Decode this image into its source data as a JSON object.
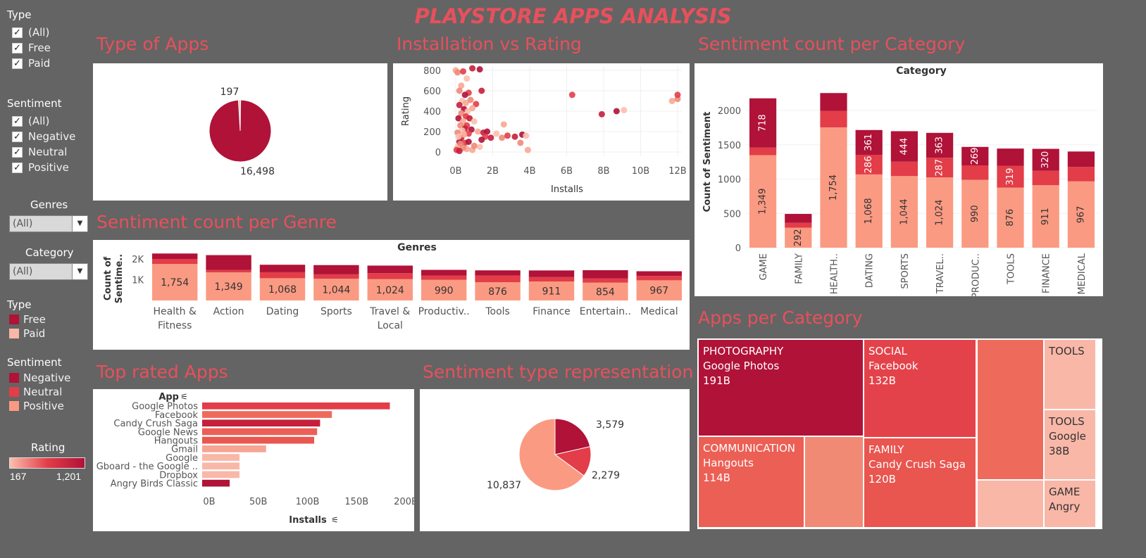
{
  "dashboard": {
    "title": "PLAYSTORE APPS ANALYSIS"
  },
  "colors": {
    "negative": "#b01238",
    "neutral": "#e23d48",
    "positive": "#fb9a82",
    "free": "#b01238",
    "paid": "#f9b7a8",
    "title": "#e8505b"
  },
  "filters": {
    "type": {
      "label": "Type",
      "items": [
        "(All)",
        "Free",
        "Paid"
      ]
    },
    "sentiment": {
      "label": "Sentiment",
      "items": [
        "(All)",
        "Negative",
        "Neutral",
        "Positive"
      ]
    },
    "genres": {
      "label": "Genres",
      "value": "(All)"
    },
    "category": {
      "label": "Category",
      "value": "(All)"
    }
  },
  "legends": {
    "type": {
      "label": "Type",
      "items": [
        "Free",
        "Paid"
      ]
    },
    "sentiment": {
      "label": "Sentiment",
      "items": [
        "Negative",
        "Neutral",
        "Positive"
      ]
    },
    "rating": {
      "label": "Rating",
      "min": "167",
      "max": "1,201"
    }
  },
  "sections": {
    "type_of_apps": "Type of Apps",
    "install_vs_rating": "Installation vs Rating",
    "sentiment_per_category": "Sentiment count per Category",
    "sentiment_per_genre": "Sentiment count per Genre",
    "top_rated_apps": "Top rated Apps",
    "sentiment_type": "Sentiment type representation",
    "apps_per_category": "Apps per Category"
  },
  "chart_data": [
    {
      "id": "type_of_apps",
      "type": "pie",
      "slices": [
        {
          "name": "Free",
          "value": 16498,
          "label": "16,498"
        },
        {
          "name": "Paid",
          "value": 197,
          "label": "197"
        }
      ]
    },
    {
      "id": "install_vs_rating",
      "type": "scatter",
      "xlabel": "Installs",
      "ylabel": "Rating",
      "x_ticks": [
        "0B",
        "2B",
        "4B",
        "6B",
        "8B",
        "10B",
        "12B"
      ],
      "y_ticks": [
        "0",
        "200",
        "400",
        "600",
        "800"
      ],
      "xlim": [
        0,
        12
      ],
      "ylim": [
        0,
        800
      ],
      "points": [
        [
          0.0,
          800
        ],
        [
          0.1,
          780
        ],
        [
          0.4,
          790
        ],
        [
          0.9,
          820
        ],
        [
          1.3,
          810
        ],
        [
          0.6,
          720
        ],
        [
          0.3,
          650
        ],
        [
          0.2,
          600
        ],
        [
          0.7,
          580
        ],
        [
          1.4,
          600
        ],
        [
          0.5,
          560
        ],
        [
          0.35,
          500
        ],
        [
          0.55,
          480
        ],
        [
          0.8,
          510
        ],
        [
          1.1,
          470
        ],
        [
          0.2,
          460
        ],
        [
          0.45,
          420
        ],
        [
          0.65,
          400
        ],
        [
          0.9,
          430
        ],
        [
          0.3,
          380
        ],
        [
          0.55,
          350
        ],
        [
          0.75,
          330
        ],
        [
          0.15,
          330
        ],
        [
          1.0,
          300
        ],
        [
          0.4,
          300
        ],
        [
          0.25,
          260
        ],
        [
          0.6,
          260
        ],
        [
          0.5,
          230
        ],
        [
          0.85,
          220
        ],
        [
          0.35,
          210
        ],
        [
          1.2,
          200
        ],
        [
          0.1,
          190
        ],
        [
          0.7,
          180
        ],
        [
          1.5,
          190
        ],
        [
          1.7,
          200
        ],
        [
          2.2,
          180
        ],
        [
          2.6,
          270
        ],
        [
          2.5,
          140
        ],
        [
          2.8,
          160
        ],
        [
          3.2,
          150
        ],
        [
          3.6,
          170
        ],
        [
          3.8,
          160
        ],
        [
          3.9,
          20
        ],
        [
          3.5,
          90
        ],
        [
          1.6,
          150
        ],
        [
          1.9,
          140
        ],
        [
          1.4,
          120
        ],
        [
          1.3,
          50
        ],
        [
          0.9,
          20
        ],
        [
          1.0,
          60
        ],
        [
          0.5,
          90
        ],
        [
          0.3,
          140
        ],
        [
          0.2,
          100
        ],
        [
          0.1,
          50
        ],
        [
          0.6,
          30
        ],
        [
          0.4,
          40
        ],
        [
          0.05,
          20
        ],
        [
          0.2,
          10
        ],
        [
          0.7,
          100
        ],
        [
          0.15,
          150
        ],
        [
          0.45,
          170
        ],
        [
          0.25,
          80
        ],
        [
          6.3,
          560
        ],
        [
          7.9,
          370
        ],
        [
          8.7,
          400
        ],
        [
          9.1,
          410
        ],
        [
          11.7,
          500
        ],
        [
          12.0,
          520
        ],
        [
          12.0,
          560
        ]
      ]
    },
    {
      "id": "sentiment_per_category",
      "type": "bar",
      "stacked": true,
      "title": "Category",
      "ylabel": "Count of Sentiment",
      "ylim": [
        0,
        2400
      ],
      "y_ticks": [
        "0",
        "500",
        "1000",
        "1500",
        "2000"
      ],
      "categories": [
        "GAME",
        "FAMILY",
        "HEALTH..",
        "DATING",
        "SPORTS",
        "TRAVEL..",
        "PRODUC..",
        "TOOLS",
        "FINANCE",
        "MEDICAL"
      ],
      "series": [
        {
          "name": "Positive",
          "values": [
            1349,
            292,
            1754,
            1068,
            1044,
            1024,
            990,
            876,
            911,
            967
          ],
          "labels": [
            "1,349",
            "292",
            "1,754",
            "1,068",
            "1,044",
            "1,024",
            "990",
            "876",
            "911",
            "967"
          ]
        },
        {
          "name": "Neutral",
          "values": [
            110,
            70,
            240,
            286,
            210,
            287,
            210,
            319,
            210,
            210
          ],
          "labels": [
            "",
            "",
            "",
            "286",
            "",
            "287",
            "",
            "319",
            "",
            ""
          ]
        },
        {
          "name": "Negative",
          "values": [
            718,
            130,
            260,
            361,
            444,
            363,
            269,
            250,
            320,
            225
          ],
          "labels": [
            "718",
            "",
            "",
            "361",
            "444",
            "363",
            "269",
            "",
            "320",
            ""
          ]
        }
      ]
    },
    {
      "id": "sentiment_per_genre",
      "type": "bar",
      "stacked": true,
      "title": "Genres",
      "ylabel": "Count of Sentime..",
      "ylim": [
        0,
        2500
      ],
      "y_ticks": [
        "1K",
        "2K"
      ],
      "categories": [
        "Health & Fitness",
        "Action",
        "Dating",
        "Sports",
        "Travel & Local",
        "Productiv..",
        "Tools",
        "Finance",
        "Entertain..",
        "Medical"
      ],
      "series": [
        {
          "name": "Positive",
          "values": [
            1754,
            1349,
            1068,
            1044,
            1024,
            990,
            876,
            911,
            854,
            967
          ],
          "labels": [
            "1,754",
            "1,349",
            "1,068",
            "1,044",
            "1,024",
            "990",
            "876",
            "911",
            "854",
            "967"
          ]
        },
        {
          "name": "Neutral",
          "values": [
            240,
            110,
            286,
            210,
            287,
            210,
            319,
            210,
            200,
            210
          ],
          "labels": []
        },
        {
          "name": "Negative",
          "values": [
            260,
            718,
            361,
            444,
            363,
            269,
            250,
            320,
            400,
            225
          ],
          "labels": []
        }
      ]
    },
    {
      "id": "top_rated_apps",
      "type": "bar",
      "orientation": "horizontal",
      "ylabel": "App",
      "xlabel": "Installs",
      "xlim": [
        0,
        210
      ],
      "x_ticks": [
        "0B",
        "50B",
        "100B",
        "150B",
        "200B"
      ],
      "categories": [
        "Google Photos",
        "Facebook",
        "Candy Crush Saga",
        "Google News",
        "Hangouts",
        "Gmail",
        "Google",
        "Gboard - the Google ..",
        "Dropbox",
        "Angry Birds Classic"
      ],
      "values": [
        191,
        132,
        120,
        117,
        114,
        65,
        38,
        38,
        38,
        28
      ],
      "colors": [
        "#e23d48",
        "#ee6b5b",
        "#c51f3b",
        "#ec5f55",
        "#e9574f",
        "#f5a592",
        "#f9b7a8",
        "#f9b7a8",
        "#f9b7a8",
        "#b01238"
      ]
    },
    {
      "id": "sentiment_type",
      "type": "pie",
      "slices": [
        {
          "name": "Negative",
          "value": 3579,
          "label": "3,579"
        },
        {
          "name": "Neutral",
          "value": 2279,
          "label": "2,279"
        },
        {
          "name": "Positive",
          "value": 10837,
          "label": "10,837"
        }
      ]
    }
  ],
  "treemap": {
    "cells": [
      {
        "category": "PHOTOGRAPHY",
        "app": "Google Photos",
        "value": "191B",
        "color": "#b01238"
      },
      {
        "category": "SOCIAL",
        "app": "Facebook",
        "value": "132B",
        "color": "#e4424a"
      },
      {
        "category": "COMMUNICATION",
        "app": "Hangouts",
        "value": "114B",
        "color": "#ec5f55"
      },
      {
        "category": "FAMILY",
        "app": "Candy Crush Saga",
        "value": "120B",
        "color": "#e9554f"
      },
      {
        "category": "",
        "app": "",
        "value": "",
        "color": "#ee6b5b"
      },
      {
        "category": "",
        "app": "",
        "value": "",
        "color": "#f18a75"
      },
      {
        "category": "TOOLS",
        "app": "",
        "value": "",
        "color": "#f9b7a8"
      },
      {
        "category": "TOOLS",
        "app": "Google",
        "value": "38B",
        "color": "#f9b7a8"
      },
      {
        "category": "",
        "app": "",
        "value": "",
        "color": "#f9b7a8"
      },
      {
        "category": "GAME",
        "app": "Angry",
        "value": "",
        "color": "#f9b7a8"
      }
    ]
  }
}
